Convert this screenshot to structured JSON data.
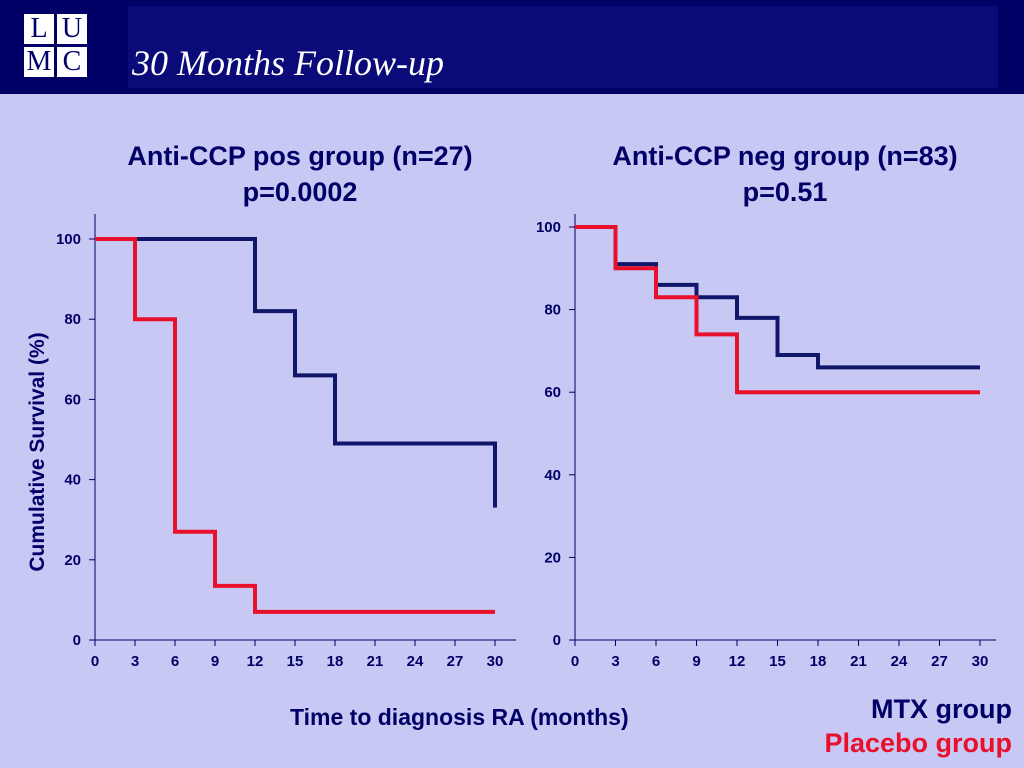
{
  "header": {
    "title": "30 Months Follow-up",
    "logo_letters": [
      "L",
      "U",
      "M",
      "C"
    ],
    "background": "#000066"
  },
  "colors": {
    "mtx": "#10176a",
    "placebo": "#e8102a",
    "text": "#000066",
    "background": "#c8c8f5"
  },
  "chart_data": [
    {
      "type": "line",
      "step": true,
      "title": "Anti-CCP pos group (n=27)",
      "subtitle": "p=0.0002",
      "ylabel": "Cumulative Survival (%)",
      "xlabel": "Time to diagnosis RA (months)",
      "xlim": [
        0,
        30
      ],
      "ylim": [
        0,
        100
      ],
      "xticks": [
        0,
        3,
        6,
        9,
        12,
        15,
        18,
        21,
        24,
        27,
        30
      ],
      "yticks": [
        0,
        20,
        40,
        60,
        80,
        100
      ],
      "series": [
        {
          "name": "MTX group",
          "color": "#10176a",
          "x": [
            0,
            3,
            12,
            15,
            18,
            30,
            30
          ],
          "y": [
            100,
            100,
            82,
            66,
            49,
            49,
            33
          ]
        },
        {
          "name": "Placebo group",
          "color": "#e8102a",
          "x": [
            0,
            3,
            6,
            9,
            12,
            30
          ],
          "y": [
            100,
            80,
            27,
            13.5,
            7,
            7
          ]
        }
      ]
    },
    {
      "type": "line",
      "step": true,
      "title": "Anti-CCP neg group (n=83)",
      "subtitle": "p=0.51",
      "xlim": [
        0,
        30
      ],
      "ylim": [
        0,
        100
      ],
      "xticks": [
        0,
        3,
        6,
        9,
        12,
        15,
        18,
        21,
        24,
        27,
        30
      ],
      "yticks": [
        0,
        20,
        40,
        60,
        80,
        100
      ],
      "series": [
        {
          "name": "MTX group",
          "color": "#10176a",
          "x": [
            0,
            3,
            6,
            9,
            12,
            15,
            18,
            30
          ],
          "y": [
            100,
            91,
            86,
            83,
            78,
            69,
            66,
            66
          ]
        },
        {
          "name": "Placebo group",
          "color": "#e8102a",
          "x": [
            0,
            3,
            6,
            9,
            12,
            30
          ],
          "y": [
            100,
            90,
            83,
            74,
            60,
            60
          ]
        }
      ]
    }
  ],
  "legend": {
    "mtx": "MTX group",
    "placebo": "Placebo group"
  }
}
